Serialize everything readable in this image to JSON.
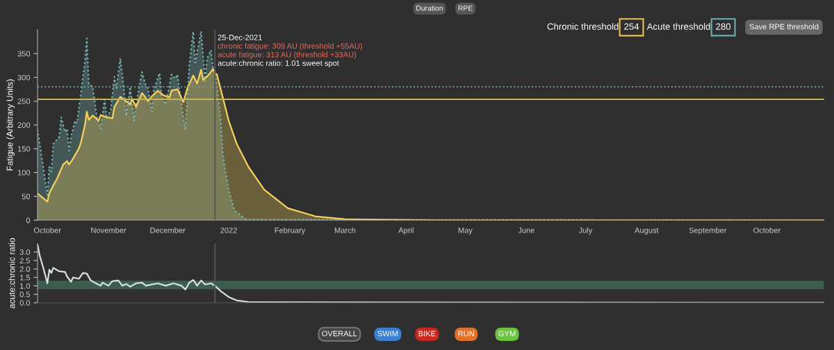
{
  "chart_data": [
    {
      "type": "area",
      "ylabel": "Fatigue (Arbitrary Units)",
      "xlim": [
        "2021-09-26",
        "2022-10-30"
      ],
      "ylim": [
        0,
        400
      ],
      "yticks": [
        0,
        50,
        100,
        150,
        200,
        250,
        300,
        350
      ],
      "xticks": [
        {
          "value": "2021-10-01",
          "label": "October"
        },
        {
          "value": "2021-11-01",
          "label": "November"
        },
        {
          "value": "2021-12-01",
          "label": "December"
        },
        {
          "value": "2022-01-01",
          "label": "2022"
        },
        {
          "value": "2022-02-01",
          "label": "February"
        },
        {
          "value": "2022-03-01",
          "label": "March"
        },
        {
          "value": "2022-04-01",
          "label": "April"
        },
        {
          "value": "2022-05-01",
          "label": "May"
        },
        {
          "value": "2022-06-01",
          "label": "June"
        },
        {
          "value": "2022-07-01",
          "label": "July"
        },
        {
          "value": "2022-08-01",
          "label": "August"
        },
        {
          "value": "2022-09-01",
          "label": "September"
        },
        {
          "value": "2022-10-01",
          "label": "October"
        }
      ],
      "grid": false,
      "legend": false,
      "series": [
        {
          "color": "#7ab8b8",
          "line_style": "dotted",
          "x": [
            "2021-09-26",
            "2021-10-01",
            "2021-10-02",
            "2021-10-03",
            "2021-10-04",
            "2021-10-06",
            "2021-10-07",
            "2021-10-08",
            "2021-10-10",
            "2021-10-11",
            "2021-10-12",
            "2021-10-13",
            "2021-10-15",
            "2021-10-16",
            "2021-10-18",
            "2021-10-20",
            "2021-10-21",
            "2021-10-22",
            "2021-10-24",
            "2021-10-26",
            "2021-10-28",
            "2021-10-30",
            "2021-10-31",
            "2021-11-02",
            "2021-11-04",
            "2021-11-05",
            "2021-11-07",
            "2021-11-09",
            "2021-11-10",
            "2021-11-12",
            "2021-11-14",
            "2021-11-16",
            "2021-11-18",
            "2021-11-20",
            "2021-11-21",
            "2021-11-23",
            "2021-11-24",
            "2021-11-27",
            "2021-11-28",
            "2021-11-30",
            "2021-12-03",
            "2021-12-05",
            "2021-12-06",
            "2021-12-08",
            "2021-12-10",
            "2021-12-12",
            "2021-12-14",
            "2021-12-15",
            "2021-12-18",
            "2021-12-20",
            "2021-12-21",
            "2021-12-23",
            "2021-12-24",
            "2021-12-25",
            "2021-12-26",
            "2021-12-28",
            "2021-12-29",
            "2022-01-01",
            "2022-01-04",
            "2022-01-10",
            "2022-10-30"
          ],
          "values": [
            190,
            53,
            112,
            102,
            160,
            170,
            175,
            216,
            185,
            192,
            146,
            175,
            209,
            204,
            267,
            331,
            382,
            287,
            280,
            219,
            192,
            253,
            219,
            228,
            301,
            277,
            340,
            270,
            219,
            280,
            209,
            267,
            311,
            282,
            277,
            228,
            275,
            309,
            258,
            243,
            306,
            297,
            306,
            243,
            190,
            326,
            396,
            331,
            397,
            292,
            340,
            357,
            321,
            313,
            282,
            209,
            137,
            64,
            20,
            1,
            0
          ]
        },
        {
          "color": "#f7d35c",
          "line_style": "solid",
          "x": [
            "2021-09-26",
            "2021-10-01",
            "2021-10-02",
            "2021-10-04",
            "2021-10-06",
            "2021-10-09",
            "2021-10-11",
            "2021-10-12",
            "2021-10-14",
            "2021-10-17",
            "2021-10-18",
            "2021-10-20",
            "2021-10-21",
            "2021-10-22",
            "2021-10-24",
            "2021-10-27",
            "2021-10-28",
            "2021-10-31",
            "2021-11-03",
            "2021-11-04",
            "2021-11-07",
            "2021-11-09",
            "2021-11-12",
            "2021-11-13",
            "2021-11-15",
            "2021-11-18",
            "2021-11-19",
            "2021-11-21",
            "2021-11-23",
            "2021-11-26",
            "2021-11-29",
            "2021-12-02",
            "2021-12-03",
            "2021-12-06",
            "2021-12-09",
            "2021-12-11",
            "2021-12-14",
            "2021-12-16",
            "2021-12-18",
            "2021-12-19",
            "2021-12-22",
            "2021-12-24",
            "2021-12-25",
            "2021-12-26",
            "2021-12-29",
            "2022-01-01",
            "2022-01-05",
            "2022-01-11",
            "2022-01-19",
            "2022-01-31",
            "2022-02-14",
            "2022-03-01",
            "2022-04-15",
            "2022-10-30"
          ],
          "values": [
            56,
            39,
            57,
            73,
            88,
            117,
            124,
            117,
            129,
            151,
            163,
            199,
            228,
            211,
            220,
            209,
            221,
            216,
            214,
            238,
            259,
            253,
            243,
            255,
            238,
            267,
            262,
            250,
            260,
            272,
            262,
            258,
            272,
            275,
            248,
            277,
            304,
            287,
            316,
            294,
            306,
            318,
            309,
            306,
            258,
            209,
            161,
            112,
            64,
            25,
            8,
            2,
            0,
            0
          ]
        }
      ],
      "ref_lines": [
        {
          "axis": "y",
          "value": 254,
          "color": "#c8b45a",
          "line_style": "solid"
        },
        {
          "axis": "y",
          "value": 280,
          "color": "#6f9a9e",
          "line_style": "dotted"
        },
        {
          "axis": "x",
          "value": "2021-12-25",
          "color": "#555555",
          "line_style": "solid"
        }
      ],
      "annotations": [
        "25-Dec-2021",
        "chronic fatigue: 309 AU (threshold +55AU)",
        "acute fatigue: 313 AU (threshold +33AU)",
        "acute:chronic ratio: 1.01 sweet spot",
        "Duration",
        "RPE",
        "Save RPE threshold",
        "Chronic threshold",
        "254",
        "Acute threshold",
        "280"
      ]
    },
    {
      "type": "line",
      "ylabel": "acute:chronic ratio",
      "xlim": [
        "2021-09-26",
        "2022-10-30"
      ],
      "ylim": [
        0,
        3.5
      ],
      "tick_labels": "y",
      "grid": false,
      "legend": false,
      "yticks": [
        {
          "value": 0,
          "label": "0.0"
        },
        {
          "value": 0.5,
          "label": "0.5"
        },
        {
          "value": 1,
          "label": "1.0"
        },
        {
          "value": 1.5,
          "label": "1.5"
        },
        {
          "value": 2,
          "label": "2.0"
        },
        {
          "value": 2.5,
          "label": "2.5"
        },
        {
          "value": 3,
          "label": "3.0"
        }
      ],
      "series": [
        {
          "color": "#d8e0e0",
          "line_style": "solid",
          "x": [
            "2021-09-26",
            "2021-09-27",
            "2021-09-29",
            "2021-10-01",
            "2021-10-02",
            "2021-10-03",
            "2021-10-04",
            "2021-10-07",
            "2021-10-10",
            "2021-10-11",
            "2021-10-13",
            "2021-10-14",
            "2021-10-17",
            "2021-10-19",
            "2021-10-21",
            "2021-10-23",
            "2021-10-25",
            "2021-10-28",
            "2021-10-29",
            "2021-11-01",
            "2021-11-03",
            "2021-11-06",
            "2021-11-08",
            "2021-11-10",
            "2021-11-12",
            "2021-11-15",
            "2021-11-18",
            "2021-11-20",
            "2021-11-23",
            "2021-11-26",
            "2021-11-30",
            "2021-12-04",
            "2021-12-08",
            "2021-12-10",
            "2021-12-12",
            "2021-12-14",
            "2021-12-16",
            "2021-12-18",
            "2021-12-20",
            "2021-12-23",
            "2021-12-25",
            "2021-12-28",
            "2022-01-01",
            "2022-01-05",
            "2022-01-12",
            "2022-10-30"
          ],
          "values": [
            3.45,
            2.84,
            2.03,
            1.15,
            1.96,
            1.76,
            2.07,
            1.86,
            1.82,
            1.55,
            1.24,
            1.49,
            1.42,
            1.76,
            1.73,
            1.32,
            1.19,
            1.01,
            1.19,
            1.01,
            1.28,
            1.32,
            1.01,
            1.11,
            0.95,
            1.15,
            1.19,
            1.01,
            1.08,
            1.15,
            1.01,
            1.15,
            1.01,
            0.78,
            1.19,
            1.35,
            1.01,
            1.32,
            1.08,
            1.15,
            1.01,
            0.68,
            0.34,
            0.14,
            0.03,
            0
          ]
        }
      ],
      "bands": [
        {
          "axis": "y",
          "from": 0.8,
          "to": 1.3,
          "color": "#3d5e4f"
        }
      ],
      "ref_lines": [
        {
          "axis": "x",
          "value": "2021-12-25",
          "color": "#555555",
          "line_style": "solid"
        }
      ],
      "annotations": [
        "OVERALL",
        "SWIM",
        "BIKE",
        "RUN",
        "GYM"
      ]
    }
  ]
}
